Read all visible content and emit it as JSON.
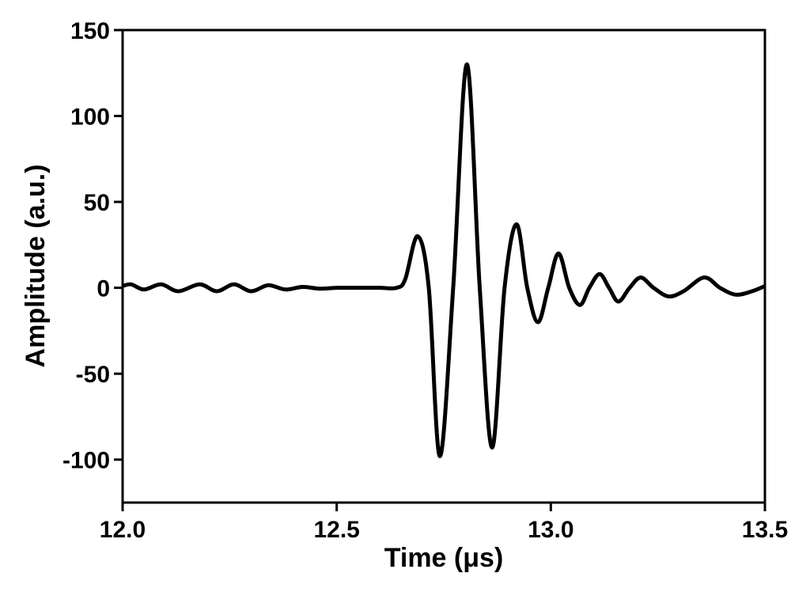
{
  "chart_data": {
    "type": "line",
    "xlabel": "Time (μs)",
    "ylabel": "Amplitude (a.u.)",
    "x": [
      12.0,
      12.02,
      12.05,
      12.09,
      12.13,
      12.18,
      12.22,
      12.26,
      12.3,
      12.34,
      12.38,
      12.42,
      12.46,
      12.5,
      12.55,
      12.6,
      12.64,
      12.66,
      12.689,
      12.715,
      12.741,
      12.772,
      12.804,
      12.834,
      12.863,
      12.892,
      12.92,
      12.945,
      12.97,
      12.994,
      13.018,
      13.043,
      13.068,
      13.09,
      13.114,
      13.136,
      13.158,
      13.184,
      13.21,
      13.24,
      13.275,
      13.31,
      13.358,
      13.395,
      13.432,
      13.47,
      13.5
    ],
    "series": [
      {
        "color": "#000000",
        "values": [
          1,
          2,
          -1,
          2,
          -2,
          2,
          -2,
          2,
          -2,
          1.5,
          -1,
          0.5,
          -0.5,
          0,
          0,
          0,
          0,
          5,
          30,
          0,
          -98,
          0,
          130,
          0,
          -93,
          0,
          37,
          0,
          -20,
          0,
          20,
          0,
          -10,
          0,
          8,
          0,
          -8,
          0,
          6,
          0,
          -5,
          -2,
          6,
          0,
          -4,
          -2,
          1
        ]
      }
    ],
    "xlim": [
      12.0,
      13.5
    ],
    "xticks": [
      {
        "value": 12.0,
        "label": "12.0"
      },
      12.5,
      {
        "value": 13.0,
        "label": "13.0"
      },
      13.5
    ],
    "ylim": [
      -125,
      150
    ],
    "yticks": [
      -100,
      -50,
      0,
      50,
      100,
      150
    ]
  }
}
